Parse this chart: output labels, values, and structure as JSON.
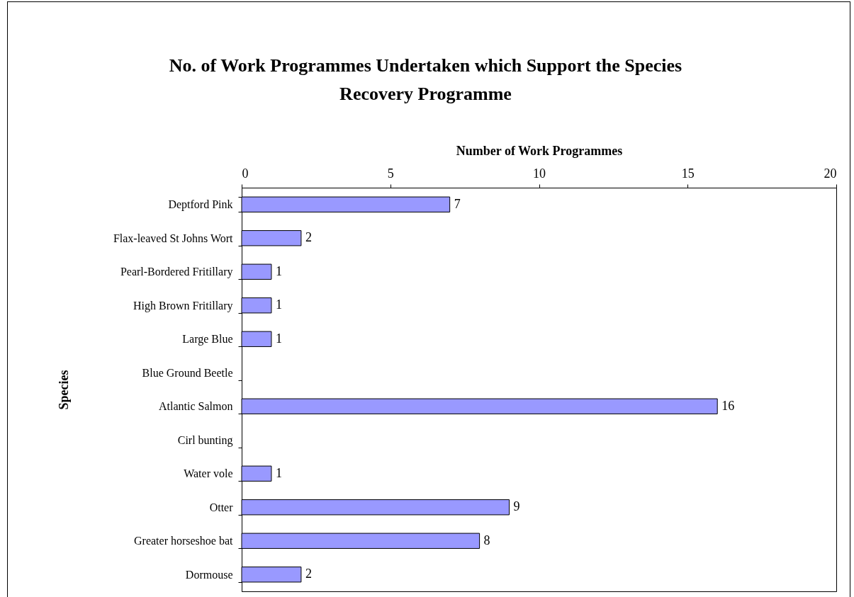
{
  "chart_data": {
    "type": "bar",
    "orientation": "horizontal",
    "title": "No. of Work Programmes Undertaken which Support the Species Recovery Programme",
    "xlabel": "Number of Work Programmes",
    "ylabel": "Species",
    "categories": [
      "Deptford Pink",
      "Flax-leaved St Johns Wort",
      "Pearl-Bordered Fritillary",
      "High Brown Fritillary",
      "Large Blue",
      "Blue Ground Beetle",
      "Atlantic Salmon",
      "Cirl bunting",
      "Water vole",
      "Otter",
      "Greater horseshoe bat",
      "Dormouse"
    ],
    "values": [
      7,
      2,
      1,
      1,
      1,
      null,
      16,
      null,
      1,
      9,
      8,
      2
    ],
    "color": "#9999ff",
    "xlim": [
      0,
      20
    ],
    "xticks": [
      0,
      5,
      10,
      15,
      20
    ],
    "grid": false,
    "data_labels": true
  }
}
